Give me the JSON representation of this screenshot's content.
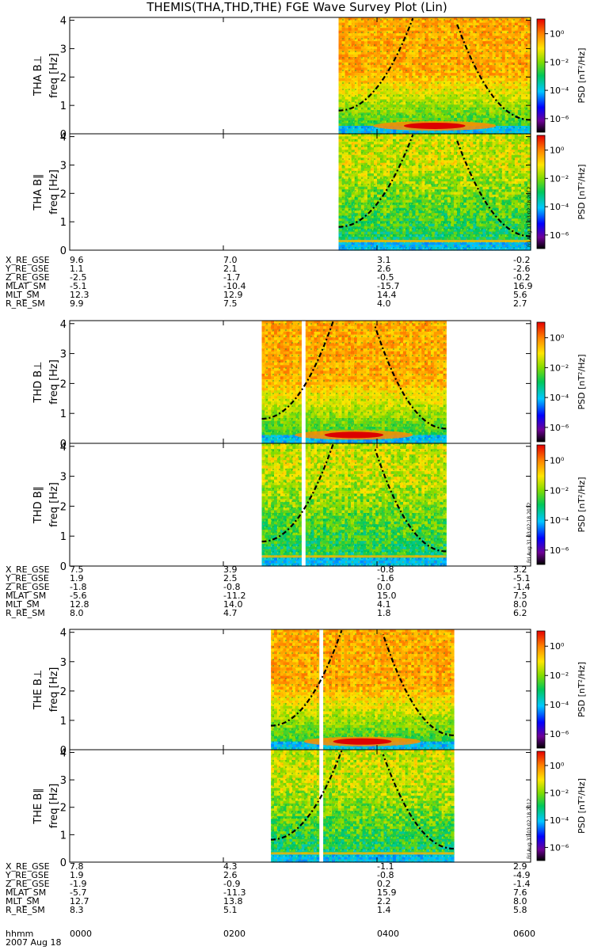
{
  "title": "THEMIS(THA,THD,THE) FGE Wave Survey Plot (Lin)",
  "colorbar": {
    "label": "PSD [nT²/Hz]",
    "ticks": [
      "10⁰",
      "10⁻²",
      "10⁻⁴",
      "10⁻⁶"
    ],
    "stamp": "Fri Aug 31 03:02:18 2012"
  },
  "freq_axis": {
    "label": "freq [Hz]",
    "ticks": [
      "0",
      "1",
      "2",
      "3",
      "4"
    ],
    "range": [
      0,
      4.1
    ]
  },
  "time_axis": {
    "label": "hhmm",
    "ticks": [
      "0000",
      "0200",
      "0400",
      "0600"
    ],
    "date": "2007 Aug 18",
    "range_hours": [
      0,
      6
    ]
  },
  "chart_data": [
    {
      "type": "heatmap",
      "probe": "THA",
      "component": "B⊥",
      "panel_label": "THA B⊥",
      "data_start_hours": 3.5,
      "data_end_hours": 6.0,
      "gap_hours": [],
      "colorscale": "rainbow-log",
      "zlim": "10⁻⁶ to 10⁰+"
    },
    {
      "type": "heatmap",
      "probe": "THA",
      "component": "B∥",
      "panel_label": "THA B∥",
      "data_start_hours": 3.5,
      "data_end_hours": 6.0,
      "gap_hours": [],
      "colorscale": "rainbow-log"
    },
    {
      "type": "heatmap",
      "probe": "THD",
      "component": "B⊥",
      "panel_label": "THD B⊥",
      "data_start_hours": 2.5,
      "data_end_hours": 4.9,
      "gap_hours": [
        3.02,
        3.07
      ],
      "colorscale": "rainbow-log"
    },
    {
      "type": "heatmap",
      "probe": "THD",
      "component": "B∥",
      "panel_label": "THD B∥",
      "data_start_hours": 2.5,
      "data_end_hours": 4.9,
      "gap_hours": [
        3.02,
        3.07
      ],
      "colorscale": "rainbow-log"
    },
    {
      "type": "heatmap",
      "probe": "THE",
      "component": "B⊥",
      "panel_label": "THE B⊥",
      "data_start_hours": 2.62,
      "data_end_hours": 5.0,
      "gap_hours": [
        3.25,
        3.3
      ],
      "colorscale": "rainbow-log"
    },
    {
      "type": "heatmap",
      "probe": "THE",
      "component": "B∥",
      "panel_label": "THE B∥",
      "data_start_hours": 2.62,
      "data_end_hours": 5.0,
      "gap_hours": [
        3.25,
        3.3
      ],
      "colorscale": "rainbow-log"
    }
  ],
  "ephemeris": [
    {
      "probe": "THA",
      "rows": [
        {
          "label": "X_RE_GSE",
          "values": [
            "9.6",
            "7.0",
            "3.1",
            "-0.2"
          ]
        },
        {
          "label": "Y_RE_GSE",
          "values": [
            "1.1",
            "2.1",
            "2.6",
            "-2.6"
          ]
        },
        {
          "label": "Z_RE_GSE",
          "values": [
            "-2.5",
            "-1.7",
            "-0.5",
            "-0.2"
          ]
        },
        {
          "label": "MLAT_SM",
          "values": [
            "-5.1",
            "-10.4",
            "-15.7",
            "16.9"
          ]
        },
        {
          "label": "MLT_SM",
          "values": [
            "12.3",
            "12.9",
            "14.4",
            "5.6"
          ]
        },
        {
          "label": "R_RE_SM",
          "values": [
            "9.9",
            "7.5",
            "4.0",
            "2.7"
          ]
        }
      ]
    },
    {
      "probe": "THD",
      "rows": [
        {
          "label": "X_RE_GSE",
          "values": [
            "7.5",
            "3.9",
            "-0.8",
            "3.2"
          ]
        },
        {
          "label": "Y_RE_GSE",
          "values": [
            "1.9",
            "2.5",
            "-1.6",
            "-5.1"
          ]
        },
        {
          "label": "Z_RE_GSE",
          "values": [
            "-1.8",
            "-0.8",
            "0.0",
            "-1.4"
          ]
        },
        {
          "label": "MLAT_SM",
          "values": [
            "-5.6",
            "-11.2",
            "15.0",
            "7.5"
          ]
        },
        {
          "label": "MLT_SM",
          "values": [
            "12.8",
            "14.0",
            "4.1",
            "8.0"
          ]
        },
        {
          "label": "R_RE_SM",
          "values": [
            "8.0",
            "4.7",
            "1.8",
            "6.2"
          ]
        }
      ]
    },
    {
      "probe": "THE",
      "rows": [
        {
          "label": "X_RE_GSE",
          "values": [
            "7.8",
            "4.3",
            "-1.1",
            "2.9"
          ]
        },
        {
          "label": "Y_RE_GSE",
          "values": [
            "1.9",
            "2.6",
            "-0.8",
            "-4.9"
          ]
        },
        {
          "label": "Z_RE_GSE",
          "values": [
            "-1.9",
            "-0.9",
            "0.2",
            "-1.4"
          ]
        },
        {
          "label": "MLAT_SM",
          "values": [
            "-5.7",
            "-11.3",
            "15.9",
            "7.6"
          ]
        },
        {
          "label": "MLT_SM",
          "values": [
            "12.7",
            "13.8",
            "2.2",
            "8.0"
          ]
        },
        {
          "label": "R_RE_SM",
          "values": [
            "8.3",
            "5.1",
            "1.4",
            "5.8"
          ]
        }
      ]
    }
  ]
}
